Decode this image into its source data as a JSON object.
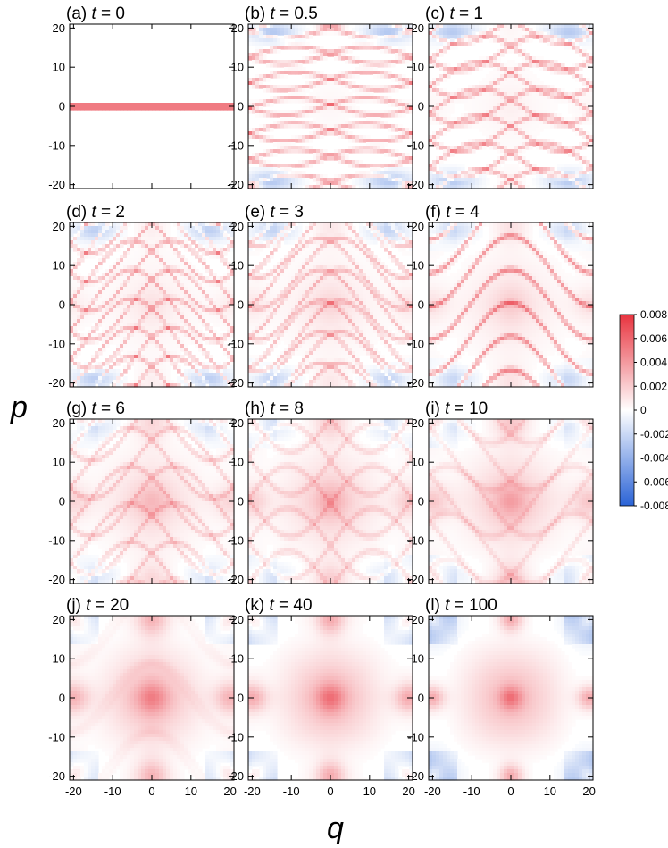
{
  "chart_data": {
    "type": "heatmap",
    "xlabel": "q",
    "ylabel": "p",
    "xlim": [
      -21,
      21
    ],
    "ylim": [
      -21,
      21
    ],
    "xticks": [
      "-20",
      "-10",
      "0",
      "10",
      "20"
    ],
    "yticks": [
      "20",
      "10",
      "0",
      "-10",
      "-20"
    ],
    "colorbar": {
      "min": -0.008,
      "max": 0.008,
      "ticks": [
        "0.008",
        "0.006",
        "0.004",
        "0.002",
        "0",
        "-0.002",
        "-0.004",
        "-0.006",
        "-0.008"
      ],
      "colors": {
        "negative": "#2a63d6",
        "zero": "#ffffff",
        "positive": "#e8343f"
      }
    },
    "panels": [
      {
        "label": "(a)",
        "t_var": "t",
        "t_value": "0",
        "t": 0
      },
      {
        "label": "(b)",
        "t_var": "t",
        "t_value": "0.5",
        "t": 0.5
      },
      {
        "label": "(c)",
        "t_var": "t",
        "t_value": "1",
        "t": 1
      },
      {
        "label": "(d)",
        "t_var": "t",
        "t_value": "2",
        "t": 2
      },
      {
        "label": "(e)",
        "t_var": "t",
        "t_value": "3",
        "t": 3
      },
      {
        "label": "(f)",
        "t_var": "t",
        "t_value": "4",
        "t": 4
      },
      {
        "label": "(g)",
        "t_var": "t",
        "t_value": "6",
        "t": 6
      },
      {
        "label": "(h)",
        "t_var": "t",
        "t_value": "8",
        "t": 8
      },
      {
        "label": "(i)",
        "t_var": "t",
        "t_value": "10",
        "t": 10
      },
      {
        "label": "(j)",
        "t_var": "t",
        "t_value": "20",
        "t": 20
      },
      {
        "label": "(k)",
        "t_var": "t",
        "t_value": "40",
        "t": 40
      },
      {
        "label": "(l)",
        "t_var": "t",
        "t_value": "100",
        "t": 100
      }
    ]
  }
}
